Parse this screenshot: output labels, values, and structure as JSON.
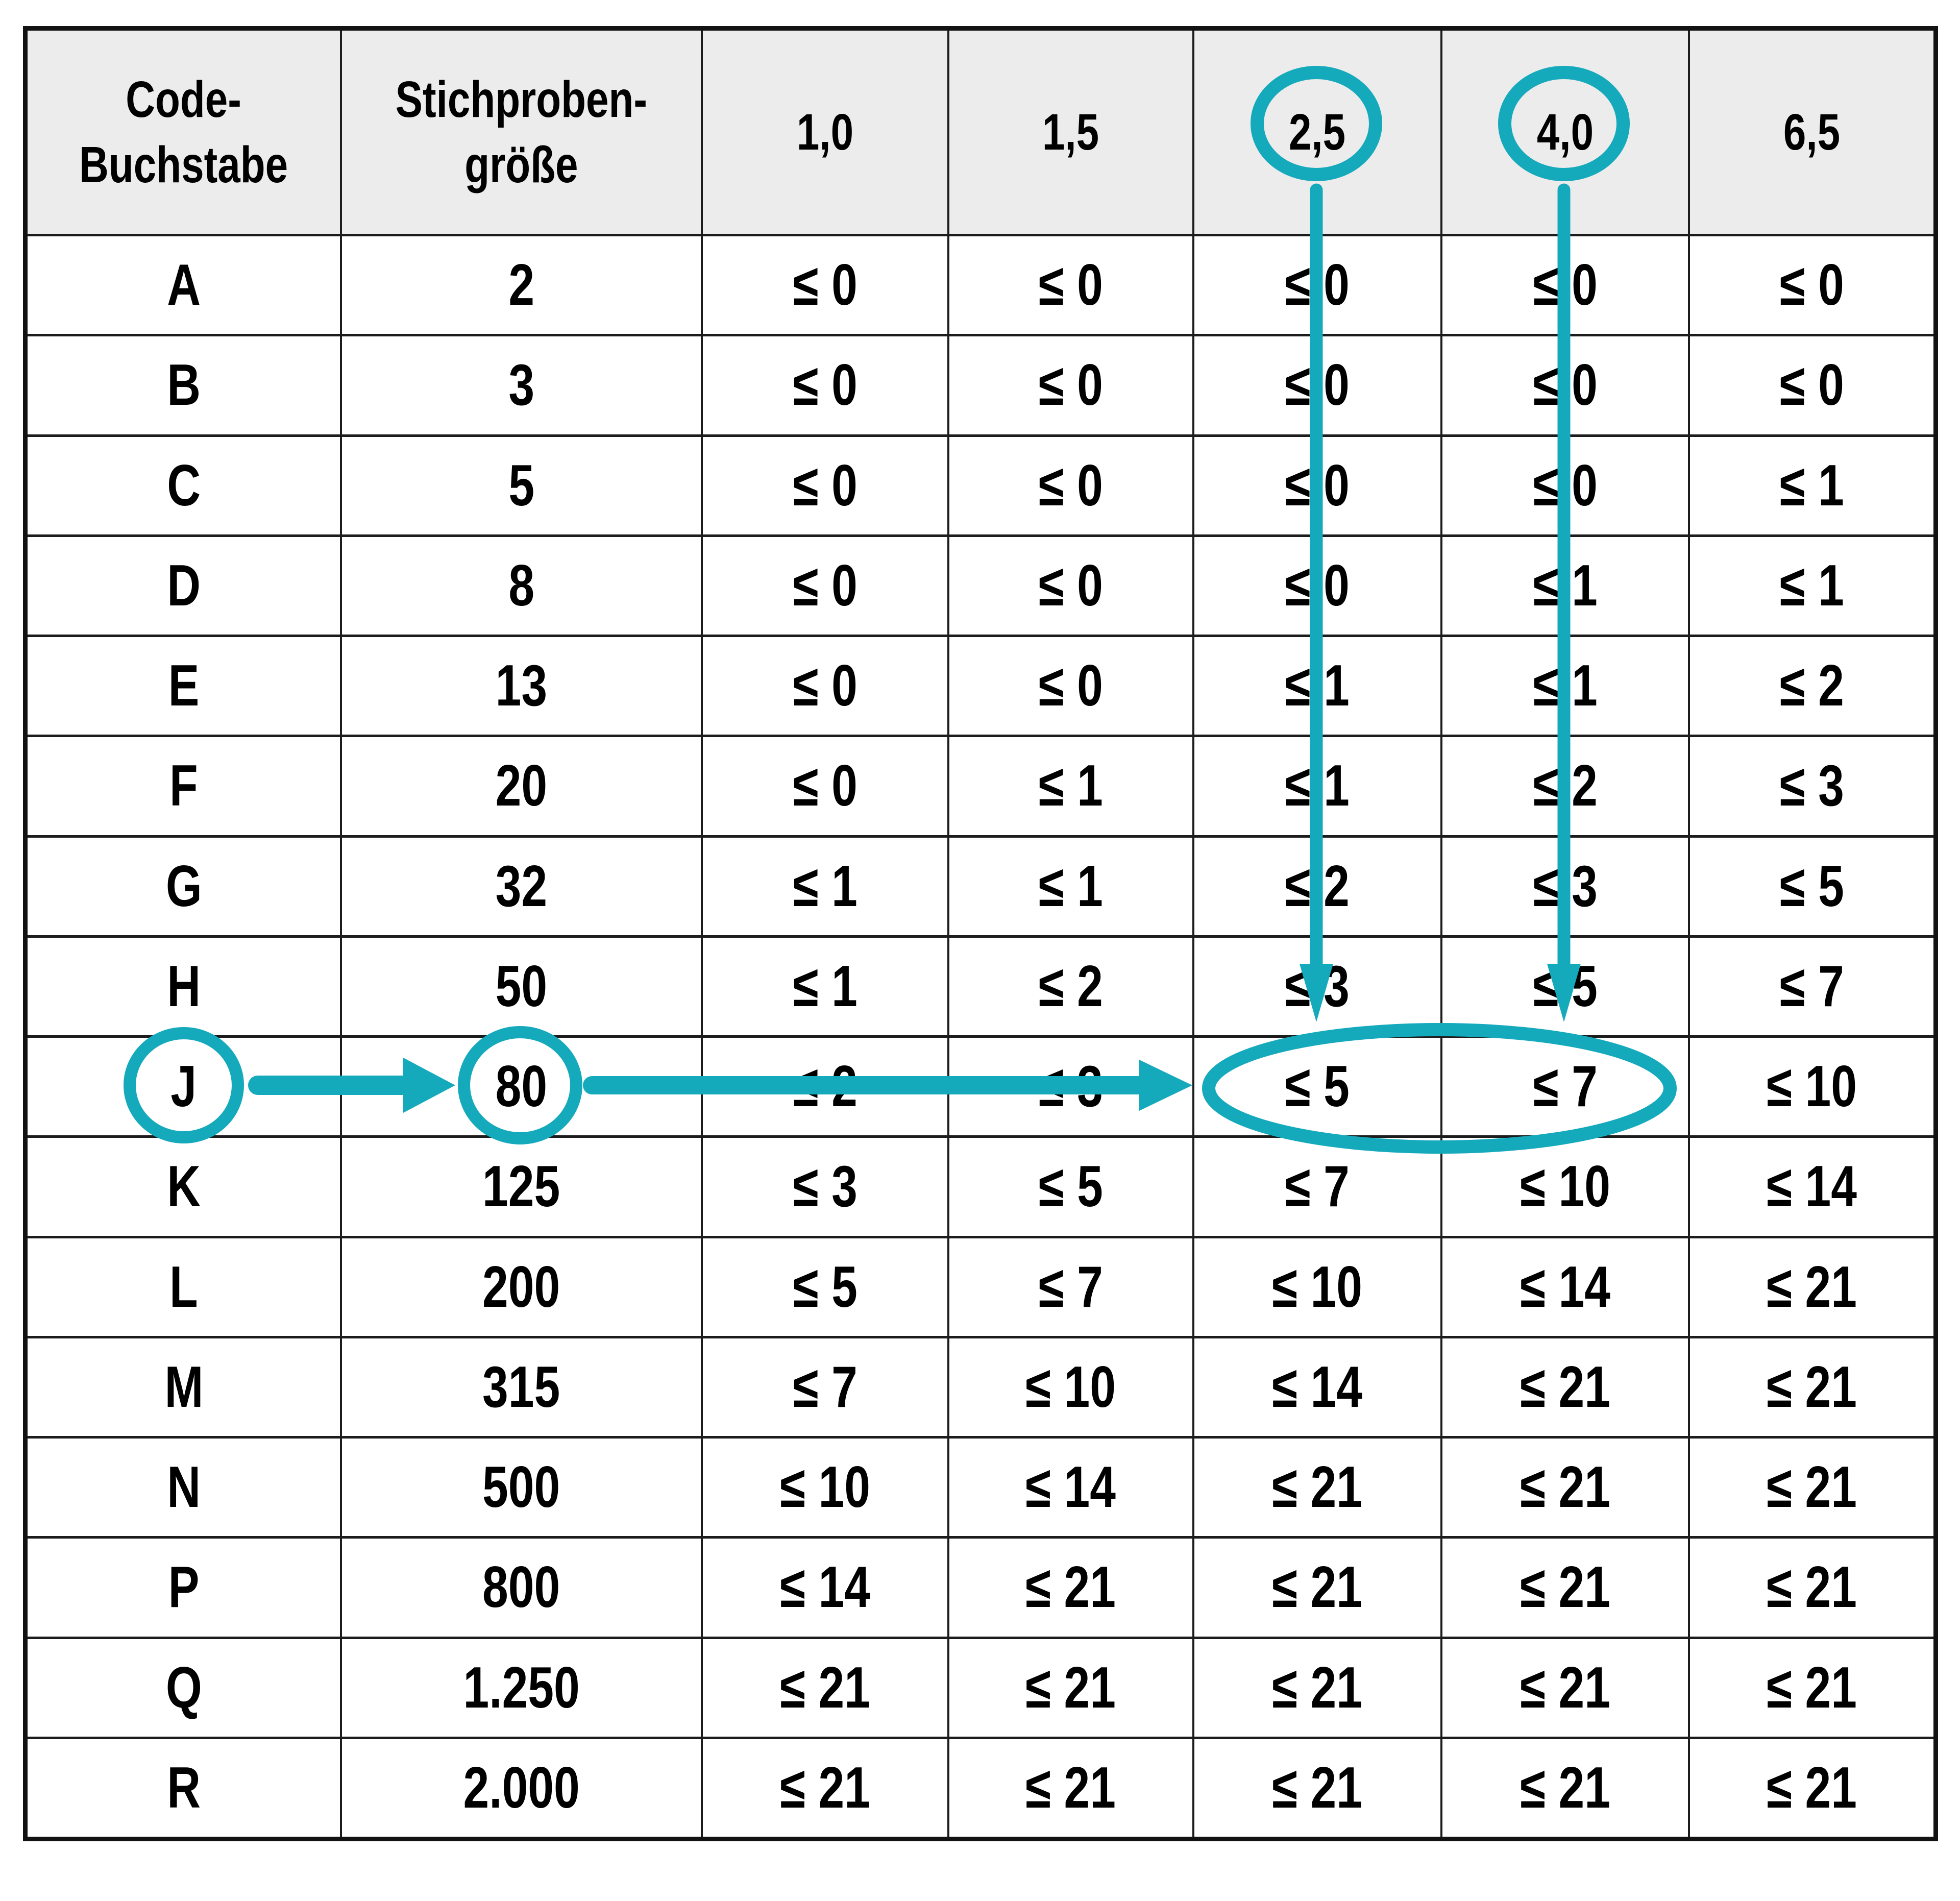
{
  "chart_data": {
    "type": "table",
    "title": "",
    "columns_flat": [
      "Code-Buchstabe",
      "Stichprobengröße",
      "1,0",
      "1,5",
      "2,5",
      "4,0",
      "6,5"
    ],
    "column_headers": [
      {
        "id": "code",
        "lines": [
          "Code-",
          "Buchstabe"
        ]
      },
      {
        "id": "size",
        "lines": [
          "Stichproben-",
          "größe"
        ]
      },
      {
        "id": "aql-1-0",
        "lines": [
          "1,0"
        ]
      },
      {
        "id": "aql-1-5",
        "lines": [
          "1,5"
        ]
      },
      {
        "id": "aql-2-5",
        "lines": [
          "2,5"
        ]
      },
      {
        "id": "aql-4-0",
        "lines": [
          "4,0"
        ]
      },
      {
        "id": "aql-6-5",
        "lines": [
          "6,5"
        ]
      }
    ],
    "rows": [
      {
        "code": "A",
        "sample_size": "2",
        "acceptance": [
          "≤ 0",
          "≤ 0",
          "≤ 0",
          "≤ 0",
          "≤ 0"
        ]
      },
      {
        "code": "B",
        "sample_size": "3",
        "acceptance": [
          "≤ 0",
          "≤ 0",
          "≤ 0",
          "≤ 0",
          "≤ 0"
        ]
      },
      {
        "code": "C",
        "sample_size": "5",
        "acceptance": [
          "≤ 0",
          "≤ 0",
          "≤ 0",
          "≤ 0",
          "≤ 1"
        ]
      },
      {
        "code": "D",
        "sample_size": "8",
        "acceptance": [
          "≤ 0",
          "≤ 0",
          "≤ 0",
          "≤ 1",
          "≤ 1"
        ]
      },
      {
        "code": "E",
        "sample_size": "13",
        "acceptance": [
          "≤ 0",
          "≤ 0",
          "≤ 1",
          "≤ 1",
          "≤ 2"
        ]
      },
      {
        "code": "F",
        "sample_size": "20",
        "acceptance": [
          "≤ 0",
          "≤ 1",
          "≤ 1",
          "≤ 2",
          "≤ 3"
        ]
      },
      {
        "code": "G",
        "sample_size": "32",
        "acceptance": [
          "≤ 1",
          "≤ 1",
          "≤ 2",
          "≤ 3",
          "≤ 5"
        ]
      },
      {
        "code": "H",
        "sample_size": "50",
        "acceptance": [
          "≤ 1",
          "≤ 2",
          "≤ 3",
          "≤ 5",
          "≤ 7"
        ]
      },
      {
        "code": "J",
        "sample_size": "80",
        "acceptance": [
          "≤ 2",
          "≤ 3",
          "≤ 5",
          "≤ 7",
          "≤ 10"
        ]
      },
      {
        "code": "K",
        "sample_size": "125",
        "acceptance": [
          "≤ 3",
          "≤ 5",
          "≤ 7",
          "≤ 10",
          "≤ 14"
        ]
      },
      {
        "code": "L",
        "sample_size": "200",
        "acceptance": [
          "≤ 5",
          "≤ 7",
          "≤ 10",
          "≤ 14",
          "≤ 21"
        ]
      },
      {
        "code": "M",
        "sample_size": "315",
        "acceptance": [
          "≤ 7",
          "≤ 10",
          "≤ 14",
          "≤ 21",
          "≤ 21"
        ]
      },
      {
        "code": "N",
        "sample_size": "500",
        "acceptance": [
          "≤ 10",
          "≤ 14",
          "≤ 21",
          "≤ 21",
          "≤ 21"
        ]
      },
      {
        "code": "P",
        "sample_size": "800",
        "acceptance": [
          "≤ 14",
          "≤ 21",
          "≤ 21",
          "≤ 21",
          "≤ 21"
        ]
      },
      {
        "code": "Q",
        "sample_size": "1.250",
        "acceptance": [
          "≤ 21",
          "≤ 21",
          "≤ 21",
          "≤ 21",
          "≤ 21"
        ]
      },
      {
        "code": "R",
        "sample_size": "2.000",
        "acceptance": [
          "≤ 21",
          "≤ 21",
          "≤ 21",
          "≤ 21",
          "≤ 21"
        ]
      }
    ],
    "annotations": {
      "accent_color": "#15a9bc",
      "circled_column_headers": [
        "2,5",
        "4,0"
      ],
      "circled_cells": {
        "code": "J",
        "sample_size": "80"
      },
      "ellipse_around_values": [
        "≤ 5",
        "≤ 7"
      ]
    }
  }
}
